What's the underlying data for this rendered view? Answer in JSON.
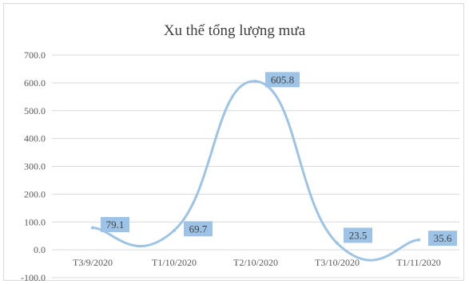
{
  "chart_data": {
    "type": "line",
    "title": "Xu thế tổng lượng mưa",
    "categories": [
      "T3/9/2020",
      "T1/10/2020",
      "T2/10/2020",
      "T3/10/2020",
      "T1/11/2020"
    ],
    "series": [
      {
        "values": [
          79.1,
          69.7,
          605.8,
          23.5,
          35.6
        ]
      }
    ],
    "data_labels": [
      "79.1",
      "69.7",
      "605.8",
      "23.5",
      "35.6"
    ],
    "y_ticks": [
      "-100.0",
      "0.0",
      "100.0",
      "200.0",
      "300.0",
      "400.0",
      "500.0",
      "600.0",
      "700.0"
    ],
    "ylim": [
      -100,
      700
    ],
    "grid": true,
    "smooth": true,
    "line_color": "#9dc3e6",
    "label_bg_color": "#9dc3e6"
  }
}
